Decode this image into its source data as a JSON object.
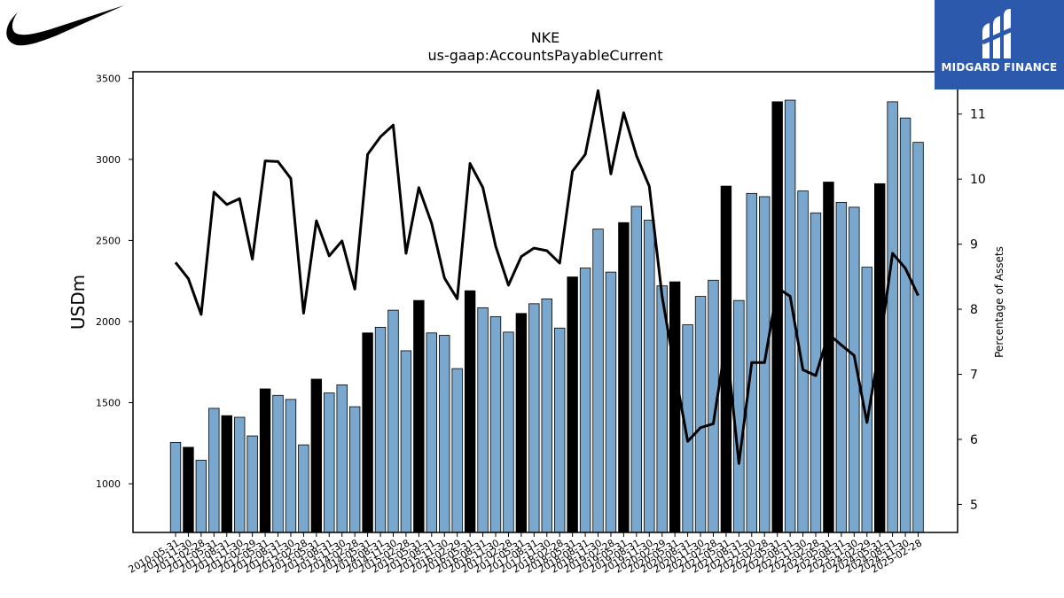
{
  "company_logo": "nike-swoosh-logo",
  "brand": {
    "name": "MIDGARD FINANCE",
    "icon": "midgard-finance-logo",
    "color": "#2d59ad"
  },
  "colors": {
    "bar_regular": "#7aa7cd",
    "bar_highlight": "#000000",
    "line": "#000000"
  },
  "chart_data": {
    "type": "bar",
    "title": "NKE",
    "subtitle": "us-gaap:AccountsPayableCurrent",
    "ylabel": "USDm",
    "y2label": "Percentage of Assets",
    "ylim": [
      700,
      3540
    ],
    "y2lim": [
      4.57,
      11.65
    ],
    "yticks": [
      1000,
      1500,
      2000,
      2500,
      3000,
      3500
    ],
    "y2ticks": [
      5,
      6,
      7,
      8,
      9,
      10,
      11
    ],
    "categories": [
      "2010-05-31",
      "2010-11-30",
      "2011-02-28",
      "2011-05-31",
      "2011-08-31",
      "2011-11-30",
      "2012-02-29",
      "2012-05-31",
      "2012-08-31",
      "2012-11-30",
      "2013-02-28",
      "2013-05-31",
      "2013-08-31",
      "2013-11-30",
      "2014-02-28",
      "2014-05-31",
      "2014-08-31",
      "2014-11-30",
      "2015-02-28",
      "2015-05-31",
      "2015-08-31",
      "2015-11-30",
      "2016-02-29",
      "2016-05-31",
      "2016-08-31",
      "2016-11-30",
      "2017-02-28",
      "2017-05-31",
      "2017-08-31",
      "2017-11-30",
      "2018-02-28",
      "2018-05-31",
      "2018-08-31",
      "2018-11-30",
      "2019-02-28",
      "2019-05-31",
      "2019-08-31",
      "2019-11-30",
      "2020-02-29",
      "2020-05-31",
      "2020-08-31",
      "2020-11-30",
      "2021-02-28",
      "2021-05-31",
      "2021-08-31",
      "2021-11-30",
      "2022-02-28",
      "2022-05-31",
      "2022-08-31",
      "2022-11-30",
      "2023-02-28",
      "2023-05-31",
      "2023-08-31",
      "2023-11-30",
      "2024-02-29",
      "2024-05-31",
      "2024-08-31",
      "2024-11-30",
      "2025-02-28"
    ],
    "highlight": [
      false,
      true,
      false,
      false,
      true,
      false,
      false,
      true,
      false,
      false,
      false,
      true,
      false,
      false,
      false,
      true,
      false,
      false,
      false,
      true,
      false,
      false,
      false,
      true,
      false,
      false,
      false,
      true,
      false,
      false,
      false,
      true,
      false,
      false,
      false,
      true,
      false,
      false,
      false,
      true,
      false,
      false,
      false,
      true,
      false,
      false,
      false,
      true,
      false,
      false,
      false,
      true,
      false,
      false,
      false,
      true,
      false,
      false,
      false
    ],
    "series": [
      {
        "axis": "left",
        "values": [
          1255,
          1225,
          1145,
          1465,
          1420,
          1410,
          1295,
          1585,
          1545,
          1520,
          1240,
          1645,
          1560,
          1610,
          1475,
          1930,
          1965,
          2070,
          1820,
          2130,
          1930,
          1915,
          1710,
          2190,
          2085,
          2030,
          1935,
          2050,
          2110,
          2140,
          1960,
          2275,
          2330,
          2570,
          2305,
          2610,
          2710,
          2625,
          2220,
          2245,
          1980,
          2155,
          2255,
          2835,
          2130,
          2790,
          2770,
          3355,
          3365,
          2805,
          2670,
          2860,
          2735,
          2705,
          2335,
          2850,
          3355,
          3255,
          3105
        ]
      },
      {
        "axis": "right",
        "values": [
          8.72,
          8.47,
          7.92,
          9.8,
          9.61,
          9.7,
          8.77,
          10.28,
          10.27,
          10.01,
          7.94,
          9.36,
          8.82,
          9.05,
          8.31,
          10.38,
          10.65,
          10.83,
          8.86,
          9.87,
          9.32,
          8.48,
          8.16,
          10.24,
          9.87,
          8.97,
          8.37,
          8.81,
          8.94,
          8.9,
          8.71,
          10.12,
          10.38,
          11.36,
          10.08,
          11.02,
          10.36,
          9.89,
          8.2,
          7.05,
          5.97,
          6.18,
          6.24,
          7.52,
          5.63,
          7.18,
          7.18,
          8.33,
          8.2,
          7.07,
          6.98,
          7.62,
          7.45,
          7.29,
          6.26,
          7.44,
          8.86,
          8.63,
          8.21
        ]
      }
    ]
  }
}
